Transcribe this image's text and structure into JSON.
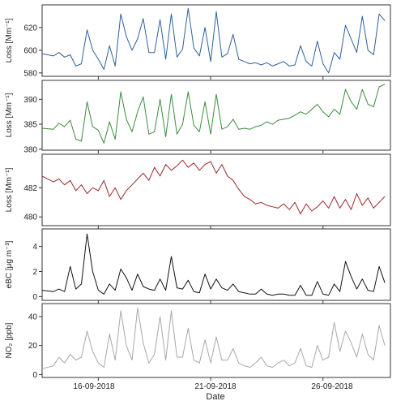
{
  "figure": {
    "xlabel": "Date",
    "x_tick_labels": [
      "16-09-2018",
      "21-09-2018",
      "26-09-2018"
    ]
  },
  "chart_data": [
    {
      "type": "line",
      "ylabel": "Loss [Mm⁻¹]",
      "color": "#2f5f9e",
      "ylim": [
        577,
        640
      ],
      "yticks": [
        580,
        600,
        620
      ],
      "x_domain": [
        "2018-09-13T12:00",
        "2018-09-29T00:00"
      ],
      "x_ticks": [
        "2018-09-16",
        "2018-09-21",
        "2018-09-26"
      ],
      "series": [
        {
          "x": [
            "2018-09-13T12:00",
            "2018-09-14T00:00",
            "2018-09-14T06:00",
            "2018-09-14T12:00",
            "2018-09-14T18:00",
            "2018-09-15T00:00",
            "2018-09-15T06:00",
            "2018-09-15T12:00",
            "2018-09-15T18:00",
            "2018-09-16T00:00",
            "2018-09-16T06:00",
            "2018-09-16T12:00",
            "2018-09-16T18:00",
            "2018-09-17T00:00",
            "2018-09-17T06:00",
            "2018-09-17T12:00",
            "2018-09-17T18:00",
            "2018-09-18T00:00",
            "2018-09-18T06:00",
            "2018-09-18T12:00",
            "2018-09-18T18:00",
            "2018-09-19T00:00",
            "2018-09-19T06:00",
            "2018-09-19T12:00",
            "2018-09-19T18:00",
            "2018-09-20T00:00",
            "2018-09-20T06:00",
            "2018-09-20T12:00",
            "2018-09-20T18:00",
            "2018-09-21T00:00",
            "2018-09-21T06:00",
            "2018-09-21T12:00",
            "2018-09-21T18:00",
            "2018-09-22T00:00",
            "2018-09-22T06:00",
            "2018-09-22T12:00",
            "2018-09-22T18:00",
            "2018-09-23T00:00",
            "2018-09-23T06:00",
            "2018-09-23T12:00",
            "2018-09-23T18:00",
            "2018-09-24T00:00",
            "2018-09-24T06:00",
            "2018-09-24T12:00",
            "2018-09-24T18:00",
            "2018-09-25T00:00",
            "2018-09-25T06:00",
            "2018-09-25T12:00",
            "2018-09-25T18:00",
            "2018-09-26T00:00",
            "2018-09-26T06:00",
            "2018-09-26T12:00",
            "2018-09-26T18:00",
            "2018-09-27T00:00",
            "2018-09-27T06:00",
            "2018-09-27T12:00",
            "2018-09-27T18:00",
            "2018-09-28T00:00",
            "2018-09-28T06:00",
            "2018-09-28T12:00",
            "2018-09-28T18:00"
          ],
          "values": [
            597,
            595,
            598,
            594,
            596,
            586,
            588,
            618,
            600,
            592,
            583,
            604,
            586,
            632,
            612,
            600,
            610,
            628,
            598,
            598,
            627,
            592,
            632,
            594,
            601,
            637,
            602,
            595,
            620,
            590,
            634,
            594,
            597,
            614,
            592,
            590,
            588,
            589,
            587,
            589,
            586,
            588,
            590,
            586,
            587,
            604,
            590,
            586,
            608,
            588,
            580,
            598,
            592,
            622,
            610,
            598,
            630,
            600,
            596,
            632,
            626
          ]
        }
      ]
    },
    {
      "type": "line",
      "ylabel": "Loss [Mm⁻¹]",
      "color": "#3c8a3c",
      "ylim": [
        379.8,
        393.8
      ],
      "yticks": [
        380,
        385,
        390
      ],
      "x_domain": [
        "2018-09-13T12:00",
        "2018-09-29T00:00"
      ],
      "x_ticks": [
        "2018-09-16",
        "2018-09-21",
        "2018-09-26"
      ],
      "series": [
        {
          "x": [
            "2018-09-13T12:00",
            "2018-09-14T00:00",
            "2018-09-14T06:00",
            "2018-09-14T12:00",
            "2018-09-14T18:00",
            "2018-09-15T00:00",
            "2018-09-15T06:00",
            "2018-09-15T12:00",
            "2018-09-15T18:00",
            "2018-09-16T00:00",
            "2018-09-16T06:00",
            "2018-09-16T12:00",
            "2018-09-16T18:00",
            "2018-09-17T00:00",
            "2018-09-17T06:00",
            "2018-09-17T12:00",
            "2018-09-17T18:00",
            "2018-09-18T00:00",
            "2018-09-18T06:00",
            "2018-09-18T12:00",
            "2018-09-18T18:00",
            "2018-09-19T00:00",
            "2018-09-19T06:00",
            "2018-09-19T12:00",
            "2018-09-19T18:00",
            "2018-09-20T00:00",
            "2018-09-20T06:00",
            "2018-09-20T12:00",
            "2018-09-20T18:00",
            "2018-09-21T00:00",
            "2018-09-21T06:00",
            "2018-09-21T12:00",
            "2018-09-21T18:00",
            "2018-09-22T00:00",
            "2018-09-22T06:00",
            "2018-09-22T12:00",
            "2018-09-22T18:00",
            "2018-09-23T00:00",
            "2018-09-23T06:00",
            "2018-09-23T12:00",
            "2018-09-23T18:00",
            "2018-09-24T00:00",
            "2018-09-24T06:00",
            "2018-09-24T12:00",
            "2018-09-24T18:00",
            "2018-09-25T00:00",
            "2018-09-25T06:00",
            "2018-09-25T12:00",
            "2018-09-25T18:00",
            "2018-09-26T00:00",
            "2018-09-26T06:00",
            "2018-09-26T12:00",
            "2018-09-26T18:00",
            "2018-09-27T00:00",
            "2018-09-27T06:00",
            "2018-09-27T12:00",
            "2018-09-27T18:00",
            "2018-09-28T00:00",
            "2018-09-28T06:00",
            "2018-09-28T12:00",
            "2018-09-28T18:00"
          ],
          "values": [
            384.2,
            384.0,
            385.2,
            384.5,
            385.8,
            382.0,
            381.6,
            389.5,
            384.5,
            383.8,
            381.2,
            385.5,
            382.0,
            391.5,
            386.0,
            383.5,
            387.5,
            390.5,
            383.0,
            383.5,
            390.0,
            382.5,
            391.0,
            383.0,
            385.0,
            391.5,
            384.8,
            383.5,
            389.5,
            383.0,
            391.0,
            384.0,
            384.5,
            386.0,
            384.0,
            384.2,
            384.0,
            384.5,
            384.8,
            385.5,
            385.0,
            385.8,
            386.0,
            386.2,
            386.8,
            387.5,
            387.0,
            388.0,
            389.0,
            387.5,
            386.5,
            388.0,
            387.0,
            392.0,
            389.5,
            388.0,
            392.0,
            389.0,
            388.5,
            392.5,
            393.0
          ]
        }
      ]
    },
    {
      "type": "line",
      "ylabel": "Loss [Mm⁻¹]",
      "color": "#9b2a2a",
      "ylim": [
        479.4,
        484.3
      ],
      "yticks": [
        480,
        482
      ],
      "x_domain": [
        "2018-09-13T12:00",
        "2018-09-29T00:00"
      ],
      "x_ticks": [
        "2018-09-16",
        "2018-09-21",
        "2018-09-26"
      ],
      "series": [
        {
          "x": [
            "2018-09-13T12:00",
            "2018-09-14T00:00",
            "2018-09-14T06:00",
            "2018-09-14T12:00",
            "2018-09-14T18:00",
            "2018-09-15T00:00",
            "2018-09-15T06:00",
            "2018-09-15T12:00",
            "2018-09-15T18:00",
            "2018-09-16T00:00",
            "2018-09-16T06:00",
            "2018-09-16T12:00",
            "2018-09-16T18:00",
            "2018-09-17T00:00",
            "2018-09-17T06:00",
            "2018-09-17T12:00",
            "2018-09-17T18:00",
            "2018-09-18T00:00",
            "2018-09-18T06:00",
            "2018-09-18T12:00",
            "2018-09-18T18:00",
            "2018-09-19T00:00",
            "2018-09-19T06:00",
            "2018-09-19T12:00",
            "2018-09-19T18:00",
            "2018-09-20T00:00",
            "2018-09-20T06:00",
            "2018-09-20T12:00",
            "2018-09-20T18:00",
            "2018-09-21T00:00",
            "2018-09-21T06:00",
            "2018-09-21T12:00",
            "2018-09-21T18:00",
            "2018-09-22T00:00",
            "2018-09-22T06:00",
            "2018-09-22T12:00",
            "2018-09-22T18:00",
            "2018-09-23T00:00",
            "2018-09-23T06:00",
            "2018-09-23T12:00",
            "2018-09-23T18:00",
            "2018-09-24T00:00",
            "2018-09-24T06:00",
            "2018-09-24T12:00",
            "2018-09-24T18:00",
            "2018-09-25T00:00",
            "2018-09-25T06:00",
            "2018-09-25T12:00",
            "2018-09-25T18:00",
            "2018-09-26T00:00",
            "2018-09-26T06:00",
            "2018-09-26T12:00",
            "2018-09-26T18:00",
            "2018-09-27T00:00",
            "2018-09-27T06:00",
            "2018-09-27T12:00",
            "2018-09-27T18:00",
            "2018-09-28T00:00",
            "2018-09-28T06:00",
            "2018-09-28T12:00",
            "2018-09-28T18:00"
          ],
          "values": [
            482.8,
            482.4,
            482.6,
            482.2,
            482.5,
            481.8,
            482.2,
            481.6,
            482.0,
            481.8,
            482.5,
            481.4,
            482.0,
            481.2,
            481.8,
            482.2,
            482.6,
            483.0,
            482.5,
            483.4,
            482.8,
            483.6,
            483.2,
            483.5,
            483.9,
            483.4,
            483.7,
            483.2,
            483.6,
            483.8,
            483.0,
            483.6,
            482.8,
            482.5,
            481.9,
            481.4,
            481.2,
            480.9,
            481.0,
            480.8,
            480.7,
            480.6,
            480.9,
            480.5,
            481.0,
            480.2,
            480.9,
            480.4,
            480.7,
            481.1,
            480.6,
            481.4,
            480.6,
            481.2,
            480.5,
            481.6,
            480.8,
            481.3,
            480.6,
            481.0,
            481.4
          ]
        }
      ]
    },
    {
      "type": "line",
      "ylabel": "eBC [μg m⁻³]",
      "color": "#111111",
      "ylim": [
        -0.3,
        5.4
      ],
      "yticks": [
        0,
        2,
        4
      ],
      "x_domain": [
        "2018-09-13T12:00",
        "2018-09-29T00:00"
      ],
      "x_ticks": [
        "2018-09-16",
        "2018-09-21",
        "2018-09-26"
      ],
      "series": [
        {
          "x": [
            "2018-09-13T12:00",
            "2018-09-14T00:00",
            "2018-09-14T06:00",
            "2018-09-14T12:00",
            "2018-09-14T18:00",
            "2018-09-15T00:00",
            "2018-09-15T06:00",
            "2018-09-15T12:00",
            "2018-09-15T18:00",
            "2018-09-16T00:00",
            "2018-09-16T06:00",
            "2018-09-16T12:00",
            "2018-09-16T18:00",
            "2018-09-17T00:00",
            "2018-09-17T06:00",
            "2018-09-17T12:00",
            "2018-09-17T18:00",
            "2018-09-18T00:00",
            "2018-09-18T06:00",
            "2018-09-18T12:00",
            "2018-09-18T18:00",
            "2018-09-19T00:00",
            "2018-09-19T06:00",
            "2018-09-19T12:00",
            "2018-09-19T18:00",
            "2018-09-20T00:00",
            "2018-09-20T06:00",
            "2018-09-20T12:00",
            "2018-09-20T18:00",
            "2018-09-21T00:00",
            "2018-09-21T06:00",
            "2018-09-21T12:00",
            "2018-09-21T18:00",
            "2018-09-22T00:00",
            "2018-09-22T06:00",
            "2018-09-22T12:00",
            "2018-09-22T18:00",
            "2018-09-23T00:00",
            "2018-09-23T06:00",
            "2018-09-23T12:00",
            "2018-09-23T18:00",
            "2018-09-24T00:00",
            "2018-09-24T06:00",
            "2018-09-24T12:00",
            "2018-09-24T18:00",
            "2018-09-25T00:00",
            "2018-09-25T06:00",
            "2018-09-25T12:00",
            "2018-09-25T18:00",
            "2018-09-26T00:00",
            "2018-09-26T06:00",
            "2018-09-26T12:00",
            "2018-09-26T18:00",
            "2018-09-27T00:00",
            "2018-09-27T06:00",
            "2018-09-27T12:00",
            "2018-09-27T18:00",
            "2018-09-28T00:00",
            "2018-09-28T06:00",
            "2018-09-28T12:00",
            "2018-09-28T18:00"
          ],
          "values": [
            0.5,
            0.4,
            0.6,
            0.4,
            2.4,
            0.6,
            1.0,
            5.0,
            2.0,
            0.5,
            0.2,
            1.0,
            0.5,
            2.2,
            1.5,
            0.5,
            1.8,
            0.8,
            0.6,
            0.5,
            1.4,
            0.5,
            3.2,
            0.7,
            0.6,
            1.3,
            0.4,
            0.3,
            1.8,
            0.6,
            1.4,
            0.7,
            0.5,
            1.0,
            0.4,
            0.3,
            0.2,
            0.2,
            0.6,
            0.2,
            0.1,
            0.2,
            0.2,
            0.1,
            0.1,
            0.9,
            0.1,
            0.1,
            1.2,
            0.2,
            0.1,
            1.0,
            0.4,
            2.8,
            1.6,
            0.6,
            1.4,
            0.5,
            0.4,
            2.4,
            1.1
          ]
        }
      ]
    },
    {
      "type": "line",
      "ylabel": "NO₂ [ppb]",
      "color": "#a8a8a8",
      "ylim": [
        -2,
        49
      ],
      "yticks": [
        0,
        20,
        40
      ],
      "x_domain": [
        "2018-09-13T12:00",
        "2018-09-29T00:00"
      ],
      "x_ticks": [
        "2018-09-16",
        "2018-09-21",
        "2018-09-26"
      ],
      "series": [
        {
          "x": [
            "2018-09-13T12:00",
            "2018-09-14T00:00",
            "2018-09-14T06:00",
            "2018-09-14T12:00",
            "2018-09-14T18:00",
            "2018-09-15T00:00",
            "2018-09-15T06:00",
            "2018-09-15T12:00",
            "2018-09-15T18:00",
            "2018-09-16T00:00",
            "2018-09-16T06:00",
            "2018-09-16T12:00",
            "2018-09-16T18:00",
            "2018-09-17T00:00",
            "2018-09-17T06:00",
            "2018-09-17T12:00",
            "2018-09-17T18:00",
            "2018-09-18T00:00",
            "2018-09-18T06:00",
            "2018-09-18T12:00",
            "2018-09-18T18:00",
            "2018-09-19T00:00",
            "2018-09-19T06:00",
            "2018-09-19T12:00",
            "2018-09-19T18:00",
            "2018-09-20T00:00",
            "2018-09-20T06:00",
            "2018-09-20T12:00",
            "2018-09-20T18:00",
            "2018-09-21T00:00",
            "2018-09-21T06:00",
            "2018-09-21T12:00",
            "2018-09-21T18:00",
            "2018-09-22T00:00",
            "2018-09-22T06:00",
            "2018-09-22T12:00",
            "2018-09-22T18:00",
            "2018-09-23T00:00",
            "2018-09-23T06:00",
            "2018-09-23T12:00",
            "2018-09-23T18:00",
            "2018-09-24T00:00",
            "2018-09-24T06:00",
            "2018-09-24T12:00",
            "2018-09-24T18:00",
            "2018-09-25T00:00",
            "2018-09-25T06:00",
            "2018-09-25T12:00",
            "2018-09-25T18:00",
            "2018-09-26T00:00",
            "2018-09-26T06:00",
            "2018-09-26T12:00",
            "2018-09-26T18:00",
            "2018-09-27T00:00",
            "2018-09-27T06:00",
            "2018-09-27T12:00",
            "2018-09-27T18:00",
            "2018-09-28T00:00",
            "2018-09-28T06:00",
            "2018-09-28T12:00",
            "2018-09-28T18:00"
          ],
          "values": [
            4,
            6,
            12,
            8,
            14,
            10,
            12,
            30,
            16,
            8,
            5,
            28,
            10,
            44,
            20,
            10,
            46,
            22,
            8,
            14,
            40,
            10,
            44,
            12,
            12,
            32,
            10,
            8,
            24,
            8,
            26,
            10,
            10,
            18,
            8,
            6,
            5,
            8,
            12,
            6,
            5,
            8,
            10,
            6,
            8,
            18,
            6,
            5,
            20,
            10,
            12,
            36,
            16,
            30,
            22,
            12,
            28,
            14,
            10,
            34,
            20
          ]
        }
      ]
    }
  ]
}
